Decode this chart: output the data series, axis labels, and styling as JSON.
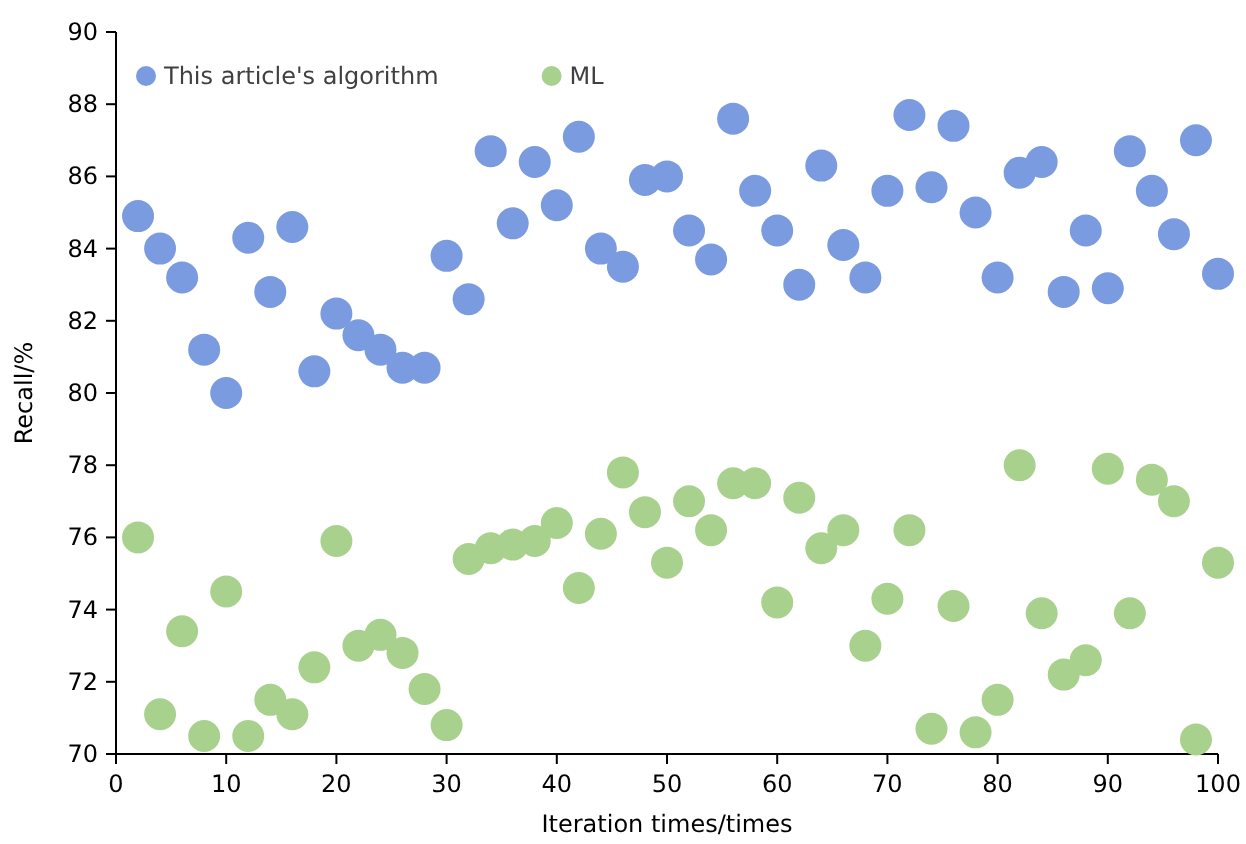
{
  "chart_data": {
    "type": "scatter",
    "xlabel": "Iteration times/times",
    "ylabel": "Recall/%",
    "x": [
      2,
      4,
      6,
      8,
      10,
      12,
      14,
      16,
      18,
      20,
      22,
      24,
      26,
      28,
      30,
      32,
      34,
      36,
      38,
      40,
      42,
      44,
      46,
      48,
      50,
      52,
      54,
      56,
      58,
      60,
      62,
      64,
      66,
      68,
      70,
      72,
      74,
      76,
      78,
      80,
      82,
      84,
      86,
      88,
      90,
      92,
      94,
      96,
      98,
      100
    ],
    "series": [
      {
        "name": "This article's algorithm",
        "color": "#7b9be0",
        "values": [
          84.9,
          84.0,
          83.2,
          81.2,
          80.0,
          84.3,
          82.8,
          84.6,
          80.6,
          82.2,
          81.6,
          81.2,
          80.7,
          80.7,
          83.8,
          82.6,
          86.7,
          84.7,
          86.4,
          85.2,
          87.1,
          84.0,
          83.5,
          85.9,
          86.0,
          84.5,
          83.7,
          87.6,
          85.6,
          84.5,
          83.0,
          86.3,
          84.1,
          83.2,
          85.6,
          87.7,
          85.7,
          87.4,
          85.0,
          83.2,
          86.1,
          86.4,
          82.8,
          84.5,
          82.9,
          86.7,
          85.6,
          84.4,
          87.0,
          83.3
        ]
      },
      {
        "name": "ML",
        "color": "#a9d18e",
        "values": [
          76.0,
          71.1,
          73.4,
          70.5,
          74.5,
          70.5,
          71.5,
          71.1,
          72.4,
          75.9,
          73.0,
          73.3,
          72.8,
          71.8,
          70.8,
          75.4,
          75.7,
          75.8,
          75.9,
          76.4,
          74.6,
          76.1,
          77.8,
          76.7,
          75.3,
          77.0,
          76.2,
          77.5,
          77.5,
          74.2,
          77.1,
          75.7,
          76.2,
          73.0,
          74.3,
          76.2,
          70.7,
          74.1,
          70.6,
          71.5,
          78.0,
          73.9,
          72.2,
          72.6,
          77.9,
          73.9,
          77.6,
          77.0,
          70.4,
          75.3
        ]
      }
    ],
    "xlim": [
      0,
      100
    ],
    "xticks": [
      0,
      10,
      20,
      30,
      40,
      50,
      60,
      70,
      80,
      90,
      100
    ],
    "ylim": [
      70,
      90
    ],
    "yticks": [
      70,
      72,
      74,
      76,
      78,
      80,
      82,
      84,
      86,
      88,
      90
    ],
    "grid": false,
    "legend": "top left",
    "marker": "circle"
  }
}
